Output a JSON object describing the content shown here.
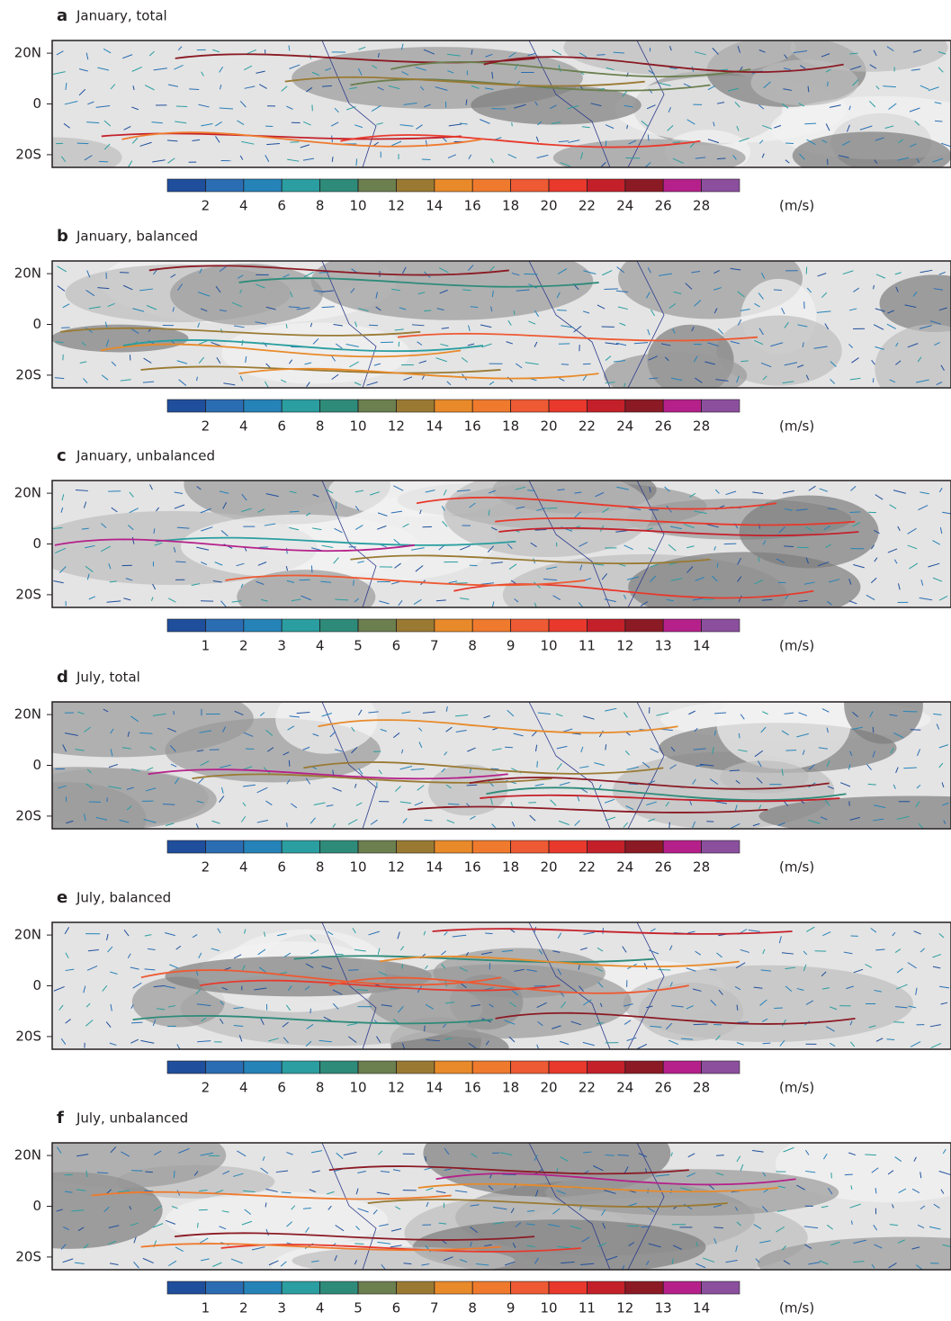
{
  "panels": [
    {
      "label": "a",
      "title": "January, total",
      "ylim": [
        -25,
        25
      ],
      "yticks": [
        {
          "value": 20,
          "label": "20N"
        },
        0,
        {
          "value": -20,
          "label": "20S"
        }
      ],
      "colorbar": {
        "colors": [
          "#1f4e9c",
          "#2a6db3",
          "#2583b8",
          "#2a9ea0",
          "#2e8b7a",
          "#6b7f4f",
          "#9a7a33",
          "#e88a2a",
          "#ef7a2d",
          "#ee5a33",
          "#e8392c",
          "#c4202a",
          "#8b1a24",
          "#b5208a",
          "#8b4f9e"
        ],
        "lim": [
          0,
          30
        ],
        "ticks": [
          2,
          4,
          6,
          8,
          10,
          12,
          14,
          16,
          18,
          20,
          22,
          24,
          26,
          28
        ],
        "unit": "(m/s)"
      }
    },
    {
      "label": "b",
      "title": "January, balanced",
      "ylim": [
        -25,
        25
      ],
      "yticks": [
        {
          "value": 20,
          "label": "20N"
        },
        0,
        {
          "value": -20,
          "label": "20S"
        }
      ],
      "colorbar": {
        "colors": [
          "#1f4e9c",
          "#2a6db3",
          "#2583b8",
          "#2a9ea0",
          "#2e8b7a",
          "#6b7f4f",
          "#9a7a33",
          "#e88a2a",
          "#ef7a2d",
          "#ee5a33",
          "#e8392c",
          "#c4202a",
          "#8b1a24",
          "#b5208a",
          "#8b4f9e"
        ],
        "lim": [
          0,
          30
        ],
        "ticks": [
          2,
          4,
          6,
          8,
          10,
          12,
          14,
          16,
          18,
          20,
          22,
          24,
          26,
          28
        ],
        "unit": "(m/s)"
      }
    },
    {
      "label": "c",
      "title": "January, unbalanced",
      "ylim": [
        -25,
        25
      ],
      "yticks": [
        {
          "value": 20,
          "label": "20N"
        },
        0,
        {
          "value": -20,
          "label": "20S"
        }
      ],
      "colorbar": {
        "colors": [
          "#1f4e9c",
          "#2a6db3",
          "#2583b8",
          "#2a9ea0",
          "#2e8b7a",
          "#6b7f4f",
          "#9a7a33",
          "#e88a2a",
          "#ef7a2d",
          "#ee5a33",
          "#e8392c",
          "#c4202a",
          "#8b1a24",
          "#b5208a",
          "#8b4f9e"
        ],
        "lim": [
          0,
          15
        ],
        "ticks": [
          1,
          2,
          3,
          4,
          5,
          6,
          7,
          8,
          9,
          10,
          11,
          12,
          13,
          14
        ],
        "unit": "(m/s)"
      }
    },
    {
      "label": "d",
      "title": "July, total",
      "ylim": [
        -25,
        25
      ],
      "yticks": [
        {
          "value": 20,
          "label": "20N"
        },
        0,
        {
          "value": -20,
          "label": "20S"
        }
      ],
      "colorbar": {
        "colors": [
          "#1f4e9c",
          "#2a6db3",
          "#2583b8",
          "#2a9ea0",
          "#2e8b7a",
          "#6b7f4f",
          "#9a7a33",
          "#e88a2a",
          "#ef7a2d",
          "#ee5a33",
          "#e8392c",
          "#c4202a",
          "#8b1a24",
          "#b5208a",
          "#8b4f9e"
        ],
        "lim": [
          0,
          30
        ],
        "ticks": [
          2,
          4,
          6,
          8,
          10,
          12,
          14,
          16,
          18,
          20,
          22,
          24,
          26,
          28
        ],
        "unit": "(m/s)"
      }
    },
    {
      "label": "e",
      "title": "July, balanced",
      "ylim": [
        -25,
        25
      ],
      "yticks": [
        {
          "value": 20,
          "label": "20N"
        },
        0,
        {
          "value": -20,
          "label": "20S"
        }
      ],
      "colorbar": {
        "colors": [
          "#1f4e9c",
          "#2a6db3",
          "#2583b8",
          "#2a9ea0",
          "#2e8b7a",
          "#6b7f4f",
          "#9a7a33",
          "#e88a2a",
          "#ef7a2d",
          "#ee5a33",
          "#e8392c",
          "#c4202a",
          "#8b1a24",
          "#b5208a",
          "#8b4f9e"
        ],
        "lim": [
          0,
          30
        ],
        "ticks": [
          2,
          4,
          6,
          8,
          10,
          12,
          14,
          16,
          18,
          20,
          22,
          24,
          26,
          28
        ],
        "unit": "(m/s)"
      }
    },
    {
      "label": "f",
      "title": "July, unbalanced",
      "ylim": [
        -25,
        25
      ],
      "yticks": [
        {
          "value": 20,
          "label": "20N"
        },
        0,
        {
          "value": -20,
          "label": "20S"
        }
      ],
      "colorbar": {
        "colors": [
          "#1f4e9c",
          "#2a6db3",
          "#2583b8",
          "#2a9ea0",
          "#2e8b7a",
          "#6b7f4f",
          "#9a7a33",
          "#e88a2a",
          "#ef7a2d",
          "#ee5a33",
          "#e8392c",
          "#c4202a",
          "#8b1a24",
          "#b5208a",
          "#8b4f9e"
        ],
        "lim": [
          0,
          15
        ],
        "ticks": [
          1,
          2,
          3,
          4,
          5,
          6,
          7,
          8,
          9,
          10,
          11,
          12,
          13,
          14
        ],
        "unit": "(m/s)"
      }
    }
  ]
}
